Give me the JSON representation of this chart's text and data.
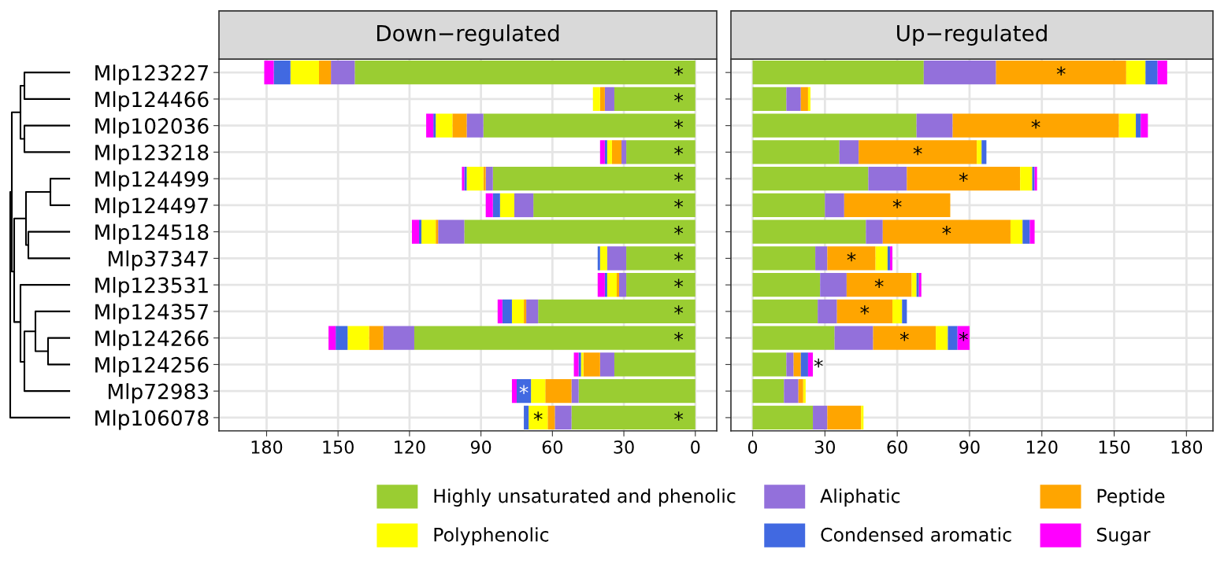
{
  "chart_data": [
    {
      "type": "bar",
      "orientation": "horizontal",
      "stacked": true,
      "title": "Down−regulated",
      "categories": [
        "Mlp123227",
        "Mlp124466",
        "Mlp102036",
        "Mlp123218",
        "Mlp124499",
        "Mlp124497",
        "Mlp124518",
        "Mlp37347",
        "Mlp123531",
        "Mlp124357",
        "Mlp124266",
        "Mlp124256",
        "Mlp72983",
        "Mlp106078"
      ],
      "series": [
        {
          "name": "Highly unsaturated and phenolic",
          "color": "#9acd32",
          "values": [
            143,
            34,
            89,
            29,
            85,
            68,
            97,
            29,
            29,
            66,
            118,
            34,
            49,
            52
          ],
          "value_labels": [
            "*",
            "*",
            "*",
            "*",
            "*",
            "*",
            "*",
            "*",
            "*",
            "*",
            "*",
            null,
            null,
            "*"
          ]
        },
        {
          "name": "Aliphatic",
          "color": "#9370db",
          "values": [
            10,
            4,
            7,
            2,
            3,
            8,
            11,
            8,
            3,
            5,
            13,
            6,
            3,
            7
          ]
        },
        {
          "name": "Peptide",
          "color": "#ffa500",
          "values": [
            5,
            2,
            6,
            4,
            1,
            0,
            1,
            0,
            1,
            1,
            6,
            7,
            11,
            3
          ]
        },
        {
          "name": "Polyphenolic",
          "color": "#ffff00",
          "values": [
            12,
            3,
            7,
            2,
            7,
            6,
            6,
            3,
            4,
            5,
            9,
            1,
            6,
            8
          ],
          "value_labels": [
            null,
            null,
            null,
            null,
            null,
            null,
            null,
            null,
            null,
            null,
            null,
            null,
            null,
            "*"
          ]
        },
        {
          "name": "Condensed aromatic",
          "color": "#4169e1",
          "values": [
            7,
            0,
            1,
            1,
            1,
            3,
            1,
            1,
            1,
            4,
            5,
            1,
            6,
            2
          ],
          "value_labels": [
            null,
            null,
            null,
            null,
            null,
            null,
            null,
            null,
            null,
            null,
            null,
            null,
            "*",
            null
          ]
        },
        {
          "name": "Sugar",
          "color": "#ff00ff",
          "values": [
            4,
            0,
            3,
            2,
            1,
            3,
            3,
            0,
            3,
            2,
            3,
            2,
            2,
            0
          ]
        }
      ],
      "xlim": [
        200,
        -9
      ],
      "xticks": [
        180,
        150,
        120,
        90,
        60,
        30,
        0
      ],
      "grid": true,
      "legend": "bottom"
    },
    {
      "type": "bar",
      "orientation": "horizontal",
      "stacked": true,
      "title": "Up−regulated",
      "categories": [
        "Mlp123227",
        "Mlp124466",
        "Mlp102036",
        "Mlp123218",
        "Mlp124499",
        "Mlp124497",
        "Mlp124518",
        "Mlp37347",
        "Mlp123531",
        "Mlp124357",
        "Mlp124266",
        "Mlp124256",
        "Mlp72983",
        "Mlp106078"
      ],
      "series": [
        {
          "color": "#9acd32",
          "values": [
            71,
            14,
            68,
            36,
            48,
            30,
            47,
            26,
            28,
            27,
            34,
            14,
            13,
            25
          ]
        },
        {
          "color": "#9370db",
          "values": [
            30,
            6,
            15,
            8,
            16,
            8,
            7,
            5,
            11,
            8,
            16,
            3,
            6,
            6
          ]
        },
        {
          "color": "#ffa500",
          "values": [
            54,
            3,
            69,
            49,
            47,
            44,
            53,
            20,
            27,
            23,
            26,
            3,
            2,
            14
          ],
          "value_labels": [
            "*",
            null,
            "*",
            "*",
            "*",
            "*",
            "*",
            "*",
            "*",
            "*",
            "*",
            null,
            null,
            null
          ]
        },
        {
          "color": "#ffff00",
          "values": [
            8,
            1,
            7,
            2,
            5,
            0,
            5,
            5,
            2,
            4,
            5,
            0,
            1,
            1
          ]
        },
        {
          "color": "#4169e1",
          "values": [
            5,
            0,
            2,
            2,
            1,
            0,
            3,
            1,
            1,
            2,
            4,
            3,
            0,
            0
          ]
        },
        {
          "color": "#ff00ff",
          "values": [
            4,
            0,
            3,
            0,
            1,
            0,
            2,
            1,
            1,
            0,
            5,
            2,
            0,
            0
          ],
          "value_labels": [
            null,
            null,
            null,
            null,
            null,
            null,
            null,
            null,
            null,
            null,
            "*",
            "*",
            null,
            null
          ]
        }
      ],
      "xlim": [
        -9,
        191
      ],
      "xticks": [
        0,
        30,
        60,
        90,
        120,
        150,
        180
      ],
      "grid": true,
      "tick_labels": "x"
    }
  ]
}
